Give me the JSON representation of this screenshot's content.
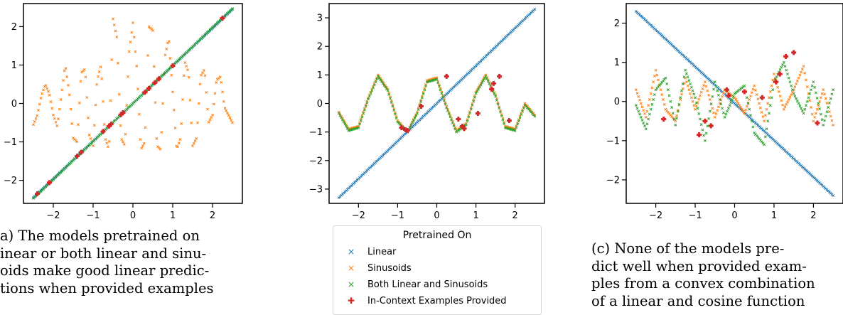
{
  "chart_data": [
    {
      "type": "scatter",
      "panel": "a",
      "xlim": [
        -2.75,
        2.75
      ],
      "ylim": [
        -2.6,
        2.6
      ],
      "xticks": [
        -2,
        -1,
        0,
        1,
        2
      ],
      "yticks": [
        -2,
        -1,
        0,
        1,
        2
      ],
      "xtick_labels": [
        "−2",
        "−1",
        "0",
        "1",
        "2"
      ],
      "ytick_labels": [
        "−2",
        "−1",
        "0",
        "1",
        "2"
      ],
      "series": [
        {
          "name": "Sinusoids",
          "color": "#ff7f0e",
          "marker": "x",
          "x": [
            -2.5,
            -2.4,
            -2.3,
            -2.2,
            -2.1,
            -2.0,
            -1.9,
            -1.8,
            -1.7,
            -1.6,
            -1.5,
            -1.4,
            -1.3,
            -1.2,
            -1.1,
            -1.0,
            -0.9,
            -0.8,
            -0.7,
            -0.6,
            -0.5,
            -0.4,
            -0.3,
            -0.2,
            -0.1,
            0.0,
            0.1,
            0.2,
            0.3,
            0.4,
            0.5,
            0.6,
            0.7,
            0.8,
            0.9,
            1.0,
            1.1,
            1.2,
            1.3,
            1.4,
            1.5,
            1.6,
            1.7,
            1.8,
            1.9,
            2.0,
            2.1,
            2.2,
            2.3,
            2.4,
            2.5
          ],
          "y": [
            -0.55,
            -0.3,
            0.2,
            0.5,
            0.25,
            -0.3,
            -0.6,
            0.2,
            1.0,
            0.3,
            -0.9,
            -1.0,
            0.8,
            0.9,
            -0.8,
            -1.1,
            0.6,
            1.0,
            -0.9,
            -1.2,
            2.2,
            1.7,
            -0.9,
            -1.1,
            1.3,
            2.1,
            0.9,
            -1.2,
            -1.0,
            2.0,
            1.9,
            -1.1,
            -1.2,
            1.2,
            1.7,
            0.3,
            -1.2,
            -0.9,
            1.1,
            0.8,
            -1.1,
            -0.9,
            0.7,
            0.9,
            -0.5,
            -0.3,
            0.6,
            0.7,
            -0.1,
            -0.3,
            -0.5
          ]
        },
        {
          "name": "Linear",
          "color": "#1f77b4",
          "marker": "x",
          "x": [
            -2.5,
            -2.0,
            -1.5,
            -1.0,
            -0.5,
            0.0,
            0.5,
            1.0,
            1.5,
            2.0,
            2.5
          ],
          "y": [
            -2.45,
            -1.96,
            -1.47,
            -0.98,
            -0.49,
            0.0,
            0.49,
            0.98,
            1.47,
            1.96,
            2.45
          ]
        },
        {
          "name": "Both Linear and Sinusoids",
          "color": "#2ca02c",
          "marker": "x",
          "x": [
            -2.5,
            -2.0,
            -1.5,
            -1.0,
            -0.5,
            0.0,
            0.5,
            1.0,
            1.5,
            2.0,
            2.5
          ],
          "y": [
            -2.47,
            -1.98,
            -1.48,
            -0.99,
            -0.49,
            0.0,
            0.5,
            0.99,
            1.48,
            1.98,
            2.47
          ]
        },
        {
          "name": "In-Context Examples Provided",
          "color": "#d62728",
          "marker": "plus",
          "x": [
            -2.4,
            -2.1,
            -1.4,
            -1.3,
            -0.75,
            -0.6,
            -0.55,
            -0.3,
            -0.25,
            0.3,
            0.4,
            0.55,
            0.65,
            1.0,
            2.25
          ],
          "y": [
            -2.35,
            -2.06,
            -1.37,
            -1.27,
            -0.73,
            -0.59,
            -0.54,
            -0.29,
            -0.24,
            0.29,
            0.39,
            0.54,
            0.64,
            0.98,
            2.22
          ]
        }
      ]
    },
    {
      "type": "scatter",
      "panel": "b",
      "xlim": [
        -2.75,
        2.75
      ],
      "ylim": [
        -3.5,
        3.5
      ],
      "xticks": [
        -2,
        -1,
        0,
        1,
        2
      ],
      "yticks": [
        -3,
        -2,
        -1,
        0,
        1,
        2,
        3
      ],
      "xtick_labels": [
        "−2",
        "−1",
        "0",
        "1",
        "2"
      ],
      "ytick_labels": [
        "−3",
        "−2",
        "−1",
        "0",
        "1",
        "2",
        "3"
      ],
      "series": [
        {
          "name": "Linear",
          "color": "#1f77b4",
          "marker": "x",
          "x": [
            -2.5,
            -2.0,
            -1.5,
            -1.0,
            -0.5,
            0.0,
            0.5,
            1.0,
            1.5,
            2.0,
            2.5
          ],
          "y": [
            -3.3,
            -2.64,
            -1.98,
            -1.32,
            -0.66,
            0.0,
            0.66,
            1.32,
            1.98,
            2.64,
            3.3
          ]
        },
        {
          "name": "Sinusoids",
          "color": "#ff7f0e",
          "marker": "x",
          "x": [
            -2.5,
            -2.25,
            -2.0,
            -1.75,
            -1.5,
            -1.25,
            -1.0,
            -0.75,
            -0.5,
            -0.25,
            0.0,
            0.25,
            0.5,
            0.75,
            1.0,
            1.25,
            1.5,
            1.75,
            2.0,
            2.25,
            2.5
          ],
          "y": [
            -0.3,
            -0.9,
            -0.8,
            0.2,
            1.0,
            0.5,
            -0.6,
            -1.0,
            -0.3,
            0.8,
            0.9,
            -0.1,
            -0.95,
            -0.7,
            0.4,
            1.0,
            0.3,
            -0.8,
            -0.9,
            0.0,
            -0.4
          ]
        },
        {
          "name": "Both Linear and Sinusoids",
          "color": "#2ca02c",
          "marker": "x",
          "x": [
            -2.5,
            -2.25,
            -2.0,
            -1.75,
            -1.5,
            -1.25,
            -1.0,
            -0.75,
            -0.5,
            -0.25,
            0.0,
            0.25,
            0.5,
            0.75,
            1.0,
            1.25,
            1.5,
            1.75,
            2.0,
            2.25,
            2.5
          ],
          "y": [
            -0.35,
            -0.95,
            -0.85,
            0.15,
            0.95,
            0.45,
            -0.65,
            -1.0,
            -0.35,
            0.75,
            0.85,
            -0.15,
            -1.0,
            -0.75,
            0.35,
            0.95,
            0.25,
            -0.85,
            -0.95,
            -0.05,
            -0.45
          ]
        },
        {
          "name": "In-Context Examples Provided",
          "color": "#d62728",
          "marker": "plus",
          "x": [
            -0.9,
            -0.8,
            -0.75,
            -0.4,
            0.25,
            0.55,
            0.65,
            0.7,
            1.05,
            1.4,
            1.45,
            1.6,
            1.85
          ],
          "y": [
            -0.85,
            -0.92,
            -0.95,
            -0.1,
            0.95,
            -0.55,
            -0.8,
            -0.88,
            -0.35,
            0.5,
            0.7,
            0.95,
            -0.6
          ]
        }
      ]
    },
    {
      "type": "scatter",
      "panel": "c",
      "xlim": [
        -2.75,
        2.75
      ],
      "ylim": [
        -2.6,
        2.5
      ],
      "xticks": [
        -2,
        -1,
        0,
        1,
        2
      ],
      "yticks": [
        -2,
        -1,
        0,
        1,
        2
      ],
      "xtick_labels": [
        "−2",
        "−1",
        "0",
        "1",
        "2"
      ],
      "ytick_labels": [
        "−2",
        "−1",
        "0",
        "1",
        "2"
      ],
      "series": [
        {
          "name": "Linear",
          "color": "#1f77b4",
          "marker": "x",
          "x": [
            -2.5,
            -2.0,
            -1.5,
            -1.0,
            -0.5,
            0.0,
            0.5,
            1.0,
            1.5,
            2.0,
            2.5
          ],
          "y": [
            2.3,
            1.83,
            1.36,
            0.89,
            0.42,
            -0.05,
            -0.52,
            -0.99,
            -1.46,
            -1.93,
            -2.4
          ]
        },
        {
          "name": "Sinusoids",
          "color": "#ff7f0e",
          "marker": "x",
          "x": [
            -2.5,
            -2.25,
            -2.0,
            -1.75,
            -1.5,
            -1.25,
            -1.0,
            -0.75,
            -0.5,
            -0.25,
            0.0,
            0.25,
            0.5,
            0.75,
            1.0,
            1.25,
            1.5,
            1.75,
            2.0,
            2.25,
            2.5
          ],
          "y": [
            0.3,
            -0.4,
            0.8,
            -0.2,
            -0.5,
            0.6,
            -0.2,
            0.5,
            -0.4,
            0.3,
            0.1,
            -0.3,
            0.4,
            -0.5,
            0.7,
            -0.2,
            0.3,
            0.9,
            -0.5,
            0.3,
            -0.6
          ]
        },
        {
          "name": "Both Linear and Sinusoids",
          "color": "#2ca02c",
          "marker": "x",
          "x": [
            -2.5,
            -2.25,
            -2.0,
            -1.75,
            -1.5,
            -1.25,
            -1.0,
            -0.75,
            -0.5,
            -0.25,
            0.0,
            0.25,
            0.5,
            0.75,
            1.0,
            1.25,
            1.5,
            1.75,
            2.0,
            2.25,
            2.5
          ],
          "y": [
            -0.1,
            -0.7,
            0.3,
            0.6,
            -0.6,
            0.8,
            0.1,
            -1.0,
            0.5,
            -0.4,
            0.2,
            0.4,
            -0.8,
            -1.1,
            0.5,
            1.0,
            0.2,
            -0.3,
            0.5,
            -0.6,
            0.3
          ]
        },
        {
          "name": "In-Context Examples Provided",
          "color": "#d62728",
          "marker": "plus",
          "x": [
            -1.8,
            -0.9,
            -0.75,
            -0.6,
            -0.2,
            -0.15,
            0.25,
            0.7,
            1.05,
            1.15,
            1.3,
            1.5,
            2.1
          ],
          "y": [
            -0.45,
            -0.85,
            -0.5,
            -0.62,
            0.3,
            0.15,
            0.25,
            0.1,
            0.5,
            0.7,
            1.15,
            1.25,
            -0.55
          ]
        }
      ]
    }
  ],
  "legend": {
    "title": "Pretrained On",
    "items": [
      {
        "label": "Linear",
        "color": "#1f77b4",
        "marker": "×"
      },
      {
        "label": "Sinusoids",
        "color": "#ff7f0e",
        "marker": "×"
      },
      {
        "label": "Both Linear and Sinusoids",
        "color": "#2ca02c",
        "marker": "×"
      },
      {
        "label": "In-Context Examples Provided",
        "color": "#d62728",
        "marker": "✚"
      }
    ]
  },
  "captions": {
    "a": [
      "a) The models pretrained on",
      "inear or both linear and sinu-",
      "oids make good linear predic-",
      "tions when provided examples"
    ],
    "c": [
      "(c) None of the models pre-",
      "dict well when provided exam-",
      "ples from a convex combination",
      "of a linear and cosine function"
    ]
  }
}
